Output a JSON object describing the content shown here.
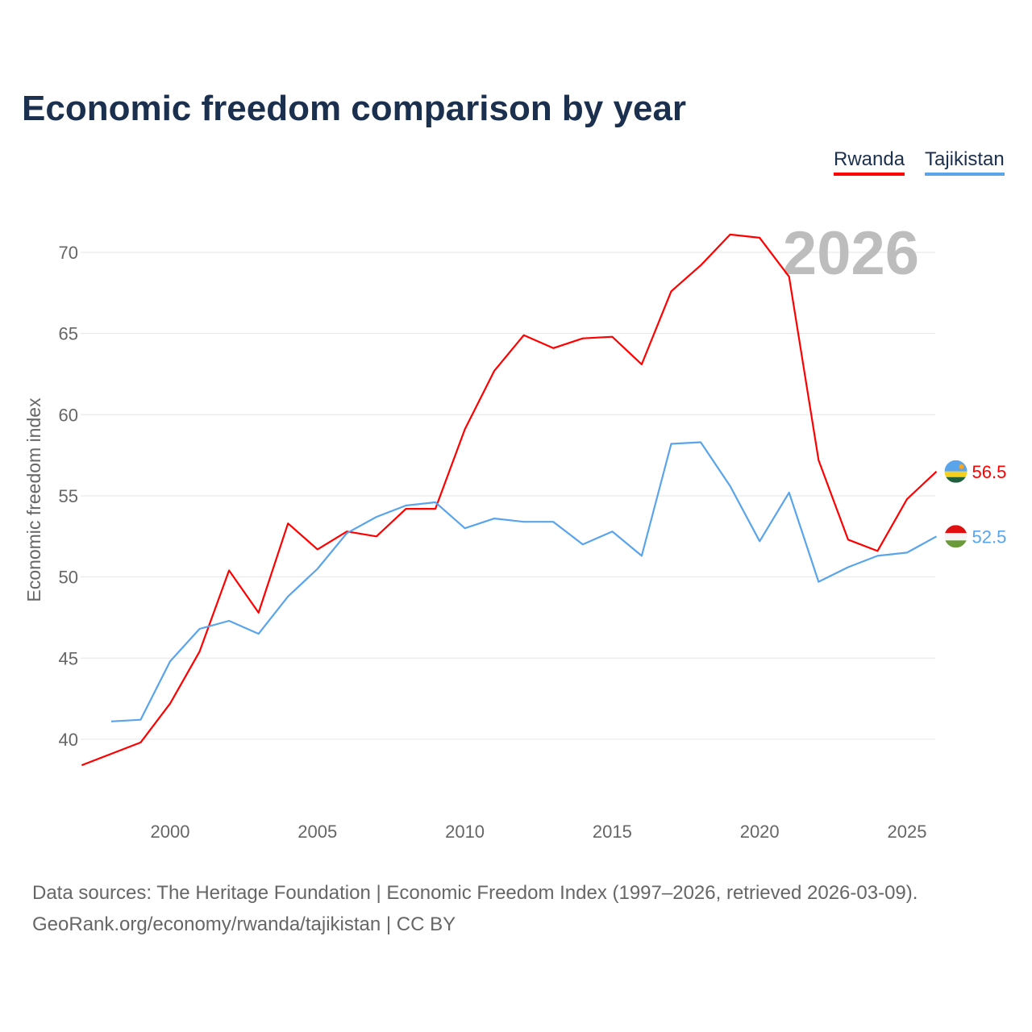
{
  "title": "Economic freedom comparison by year",
  "source_line1": "Data sources: The Heritage Foundation | Economic Freedom Index (1997–2026, retrieved 2026-03-09).",
  "source_line2": "GeoRank.org/economy/rwanda/tajikistan | CC BY",
  "chart_data": {
    "type": "line",
    "title": "Economic freedom comparison by year",
    "xlabel": "",
    "ylabel": "Economic freedom index",
    "xlim": [
      1997,
      2026
    ],
    "ylim": [
      36.5,
      73.5
    ],
    "yticks": [
      40,
      45,
      50,
      55,
      60,
      65,
      70
    ],
    "xticks": [
      2000,
      2005,
      2010,
      2015,
      2020,
      2025
    ],
    "grid": true,
    "legend_position": "top-right",
    "year_watermark": "2026",
    "series": [
      {
        "name": "Rwanda",
        "color": "#ff0000",
        "end_label": "56.5",
        "x": [
          1997,
          1998,
          1999,
          2000,
          2001,
          2002,
          2003,
          2004,
          2005,
          2006,
          2007,
          2008,
          2009,
          2010,
          2011,
          2012,
          2013,
          2014,
          2015,
          2016,
          2017,
          2018,
          2019,
          2020,
          2021,
          2022,
          2023,
          2024,
          2025,
          2026
        ],
        "values": [
          38.4,
          39.1,
          39.8,
          42.2,
          45.4,
          50.4,
          47.8,
          53.3,
          51.7,
          52.8,
          52.5,
          54.2,
          54.2,
          59.1,
          62.7,
          64.9,
          64.1,
          64.7,
          64.8,
          63.1,
          67.6,
          69.2,
          71.1,
          70.9,
          68.5,
          57.2,
          52.3,
          51.6,
          54.8,
          56.5
        ]
      },
      {
        "name": "Tajikistan",
        "color": "#5aa4ec",
        "end_label": "52.5",
        "x": [
          1998,
          1999,
          2000,
          2001,
          2002,
          2003,
          2004,
          2005,
          2006,
          2007,
          2008,
          2009,
          2010,
          2011,
          2012,
          2013,
          2014,
          2015,
          2016,
          2017,
          2018,
          2019,
          2020,
          2021,
          2022,
          2023,
          2024,
          2025,
          2026
        ],
        "values": [
          41.1,
          41.2,
          44.8,
          46.8,
          47.3,
          46.5,
          48.8,
          50.5,
          52.7,
          53.7,
          54.4,
          54.6,
          53.0,
          53.6,
          53.4,
          53.4,
          52.0,
          52.8,
          51.3,
          58.2,
          58.3,
          55.6,
          52.2,
          55.2,
          49.7,
          50.6,
          51.3,
          51.5,
          52.5
        ]
      }
    ]
  }
}
